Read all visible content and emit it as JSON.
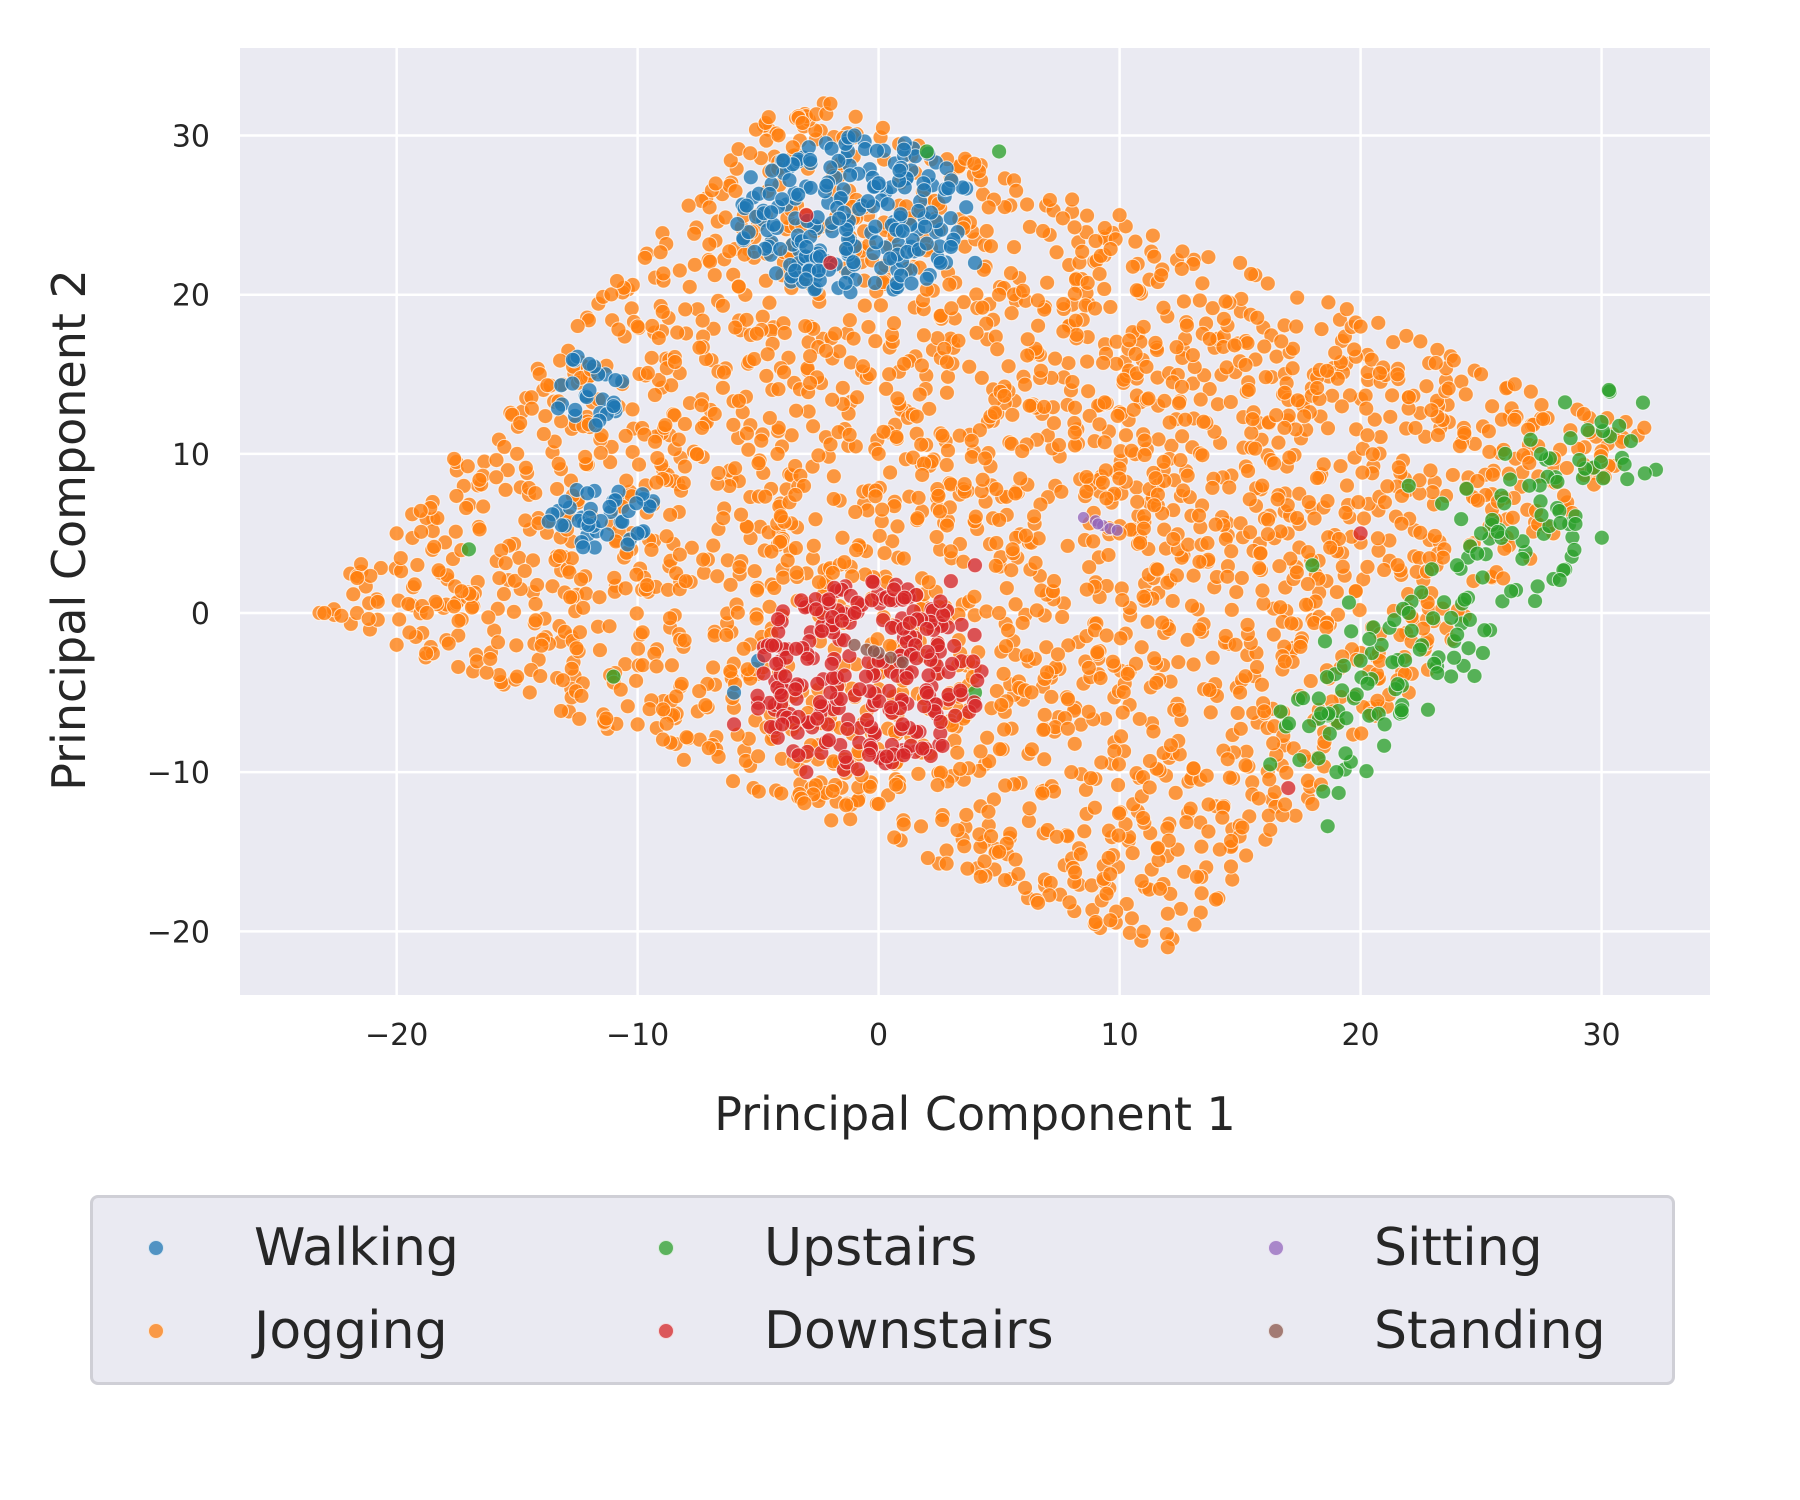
{
  "chart_data": {
    "type": "scatter",
    "xlabel": "Principal Component 1",
    "ylabel": "Principal Component 2",
    "xlim": [
      -26.5,
      34.5
    ],
    "ylim": [
      -24,
      35.5
    ],
    "xticks": [
      -20,
      -10,
      0,
      10,
      20,
      30
    ],
    "yticks": [
      -20,
      -10,
      0,
      10,
      20,
      30
    ],
    "xtick_labels": [
      "−20",
      "−10",
      "0",
      "10",
      "20",
      "30"
    ],
    "ytick_labels": [
      "−20",
      "−10",
      "0",
      "10",
      "20",
      "30"
    ],
    "grid": true,
    "background": "#eaeaf2",
    "legend_placement": "below",
    "legend_columns": 3,
    "series": [
      {
        "name": "Walking",
        "color": "#1f77b4",
        "region": "upper-left cluster (PC1 -6..6, PC2 17..31) plus patches near (-12, 14) and (-12, 5)",
        "samples": [
          [
            -4,
            26
          ],
          [
            -2,
            28
          ],
          [
            0,
            27
          ],
          [
            1,
            24
          ],
          [
            3,
            23
          ],
          [
            -3,
            23
          ],
          [
            2,
            21
          ],
          [
            4,
            22
          ],
          [
            -1,
            30
          ],
          [
            -12,
            14
          ],
          [
            -11,
            13
          ],
          [
            -12,
            6
          ],
          [
            -10,
            5
          ],
          [
            -13,
            7
          ],
          [
            -5,
            -3
          ],
          [
            -6,
            -5
          ]
        ]
      },
      {
        "name": "Jogging",
        "color": "#ff7f0e",
        "region": "dense parallelogram with corners near (-24, 0), (-3, 33), (32, 12), (12, -21)",
        "samples": [
          [
            -23,
            0
          ],
          [
            -20,
            5
          ],
          [
            -15,
            10
          ],
          [
            -10,
            18
          ],
          [
            -5,
            25
          ],
          [
            -2,
            32
          ],
          [
            0,
            10
          ],
          [
            5,
            20
          ],
          [
            10,
            25
          ],
          [
            15,
            22
          ],
          [
            20,
            18
          ],
          [
            25,
            15
          ],
          [
            31,
            12
          ],
          [
            28,
            5
          ],
          [
            22,
            -5
          ],
          [
            18,
            -12
          ],
          [
            14,
            -18
          ],
          [
            12,
            -21
          ],
          [
            5,
            -15
          ],
          [
            0,
            -12
          ],
          [
            -5,
            -9
          ],
          [
            -10,
            -7
          ],
          [
            -15,
            -4
          ],
          [
            -20,
            -2
          ],
          [
            5,
            0
          ],
          [
            10,
            5
          ],
          [
            15,
            -5
          ],
          [
            8,
            -10
          ],
          [
            -8,
            2
          ]
        ]
      },
      {
        "name": "Upstairs",
        "color": "#2ca02c",
        "region": "right region (PC1 16..32, PC2 -12..14) and scattered points",
        "samples": [
          [
            25,
            5
          ],
          [
            27,
            8
          ],
          [
            30,
            12
          ],
          [
            22,
            0
          ],
          [
            20,
            -3
          ],
          [
            24,
            3
          ],
          [
            18,
            3
          ],
          [
            26,
            10
          ],
          [
            21,
            -7
          ],
          [
            19,
            -10
          ],
          [
            22,
            8
          ],
          [
            2,
            29
          ],
          [
            5,
            29
          ],
          [
            4,
            -5
          ],
          [
            -11,
            -4
          ],
          [
            -17,
            4
          ]
        ]
      },
      {
        "name": "Downstairs",
        "color": "#d62728",
        "region": "central cluster around (0, -4)",
        "samples": [
          [
            -2,
            -5
          ],
          [
            0,
            -3
          ],
          [
            2,
            -1
          ],
          [
            -4,
            -7
          ],
          [
            -6,
            -7
          ],
          [
            3,
            2
          ],
          [
            -1,
            0
          ],
          [
            1,
            -7
          ],
          [
            -3,
            -10
          ],
          [
            4,
            3
          ],
          [
            -5,
            -6
          ],
          [
            2,
            -5
          ],
          [
            -2,
            22
          ],
          [
            -3,
            25
          ],
          [
            20,
            5
          ],
          [
            17,
            -11
          ]
        ]
      },
      {
        "name": "Sitting",
        "color": "#9467bd",
        "region": "tight cluster near (9, 5.5)",
        "samples": [
          [
            8.5,
            6
          ],
          [
            9,
            5.8
          ],
          [
            9.3,
            5.5
          ],
          [
            9.6,
            5.3
          ],
          [
            9.9,
            5.2
          ],
          [
            9.1,
            5.6
          ]
        ]
      },
      {
        "name": "Standing",
        "color": "#8c564b",
        "region": "tight cluster near (0, -2.5)",
        "samples": [
          [
            -1,
            -2
          ],
          [
            -0.5,
            -2.3
          ],
          [
            0,
            -2.5
          ],
          [
            0.5,
            -2.8
          ],
          [
            1,
            -3.1
          ],
          [
            -0.2,
            -2.4
          ]
        ]
      }
    ]
  }
}
